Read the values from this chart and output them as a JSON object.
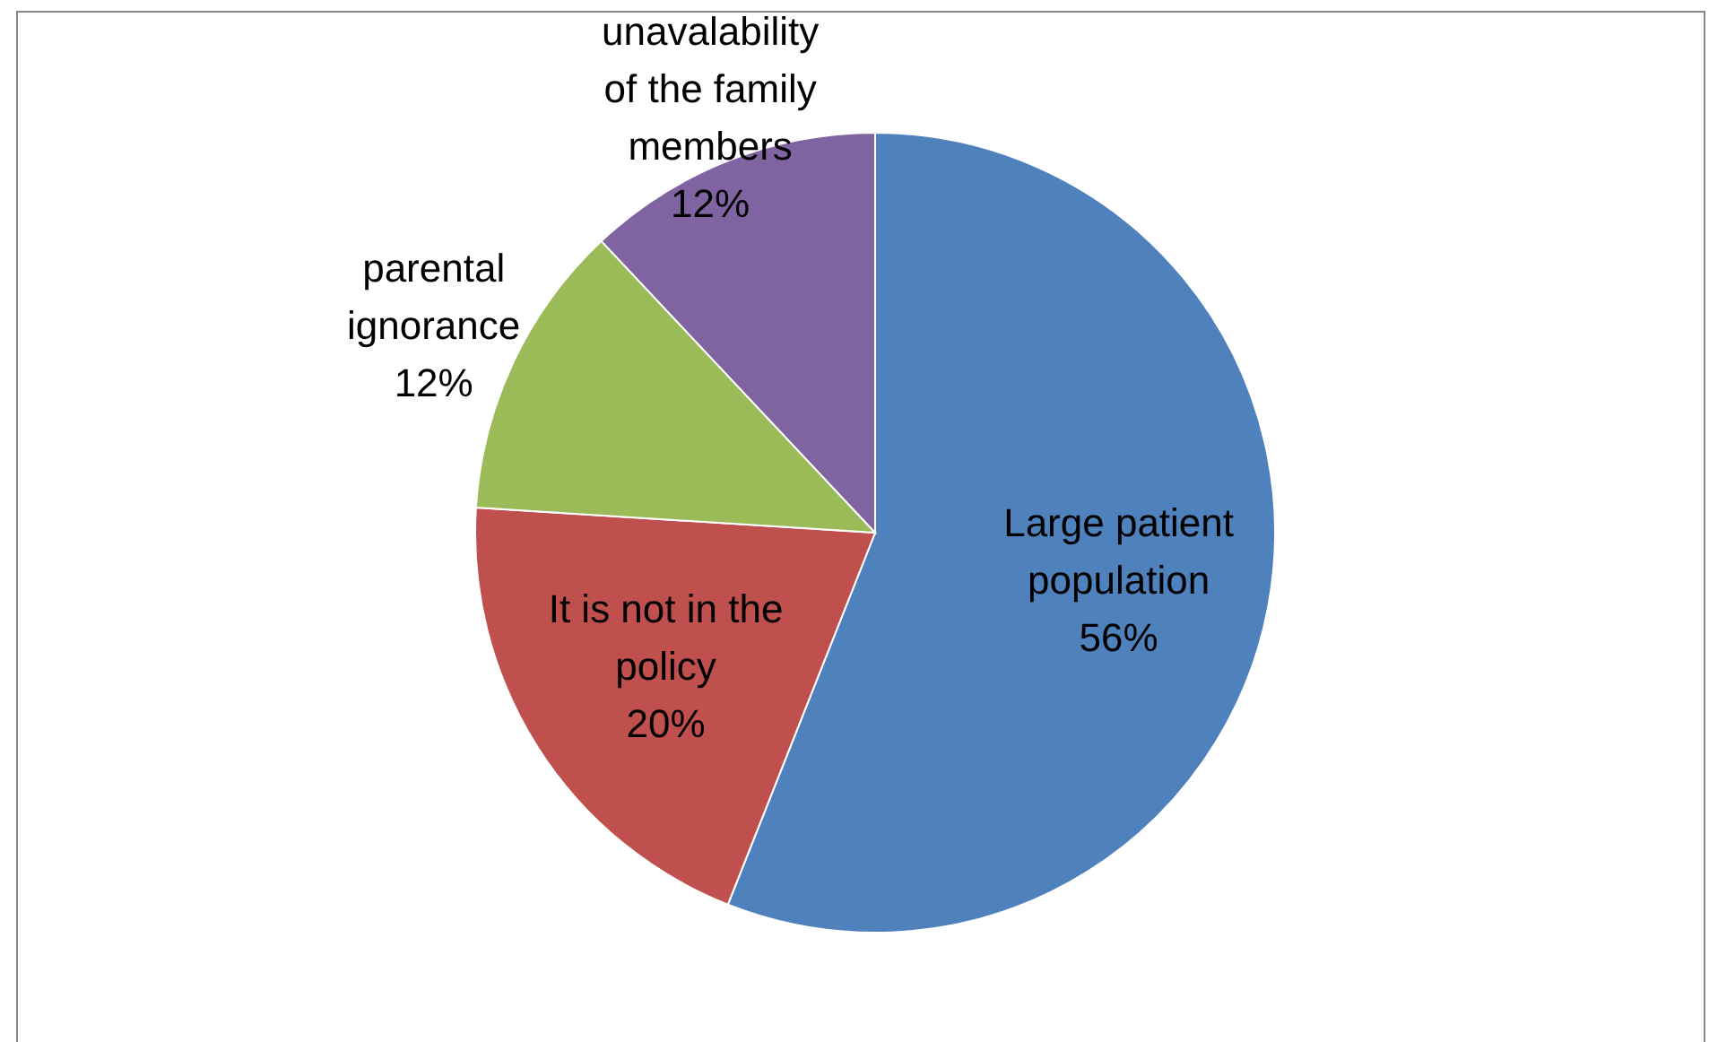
{
  "chart_data": {
    "type": "pie",
    "categories": [
      "Large patient population",
      "It is not in the policy",
      "parental ignorance",
      "unavalability of the family members"
    ],
    "values": [
      56,
      20,
      12,
      12
    ],
    "value_labels": [
      "56%",
      "20%",
      "12%",
      "12%"
    ],
    "colors": [
      "#4f81bd",
      "#c0504d",
      "#9bbb59",
      "#8064a2"
    ]
  }
}
